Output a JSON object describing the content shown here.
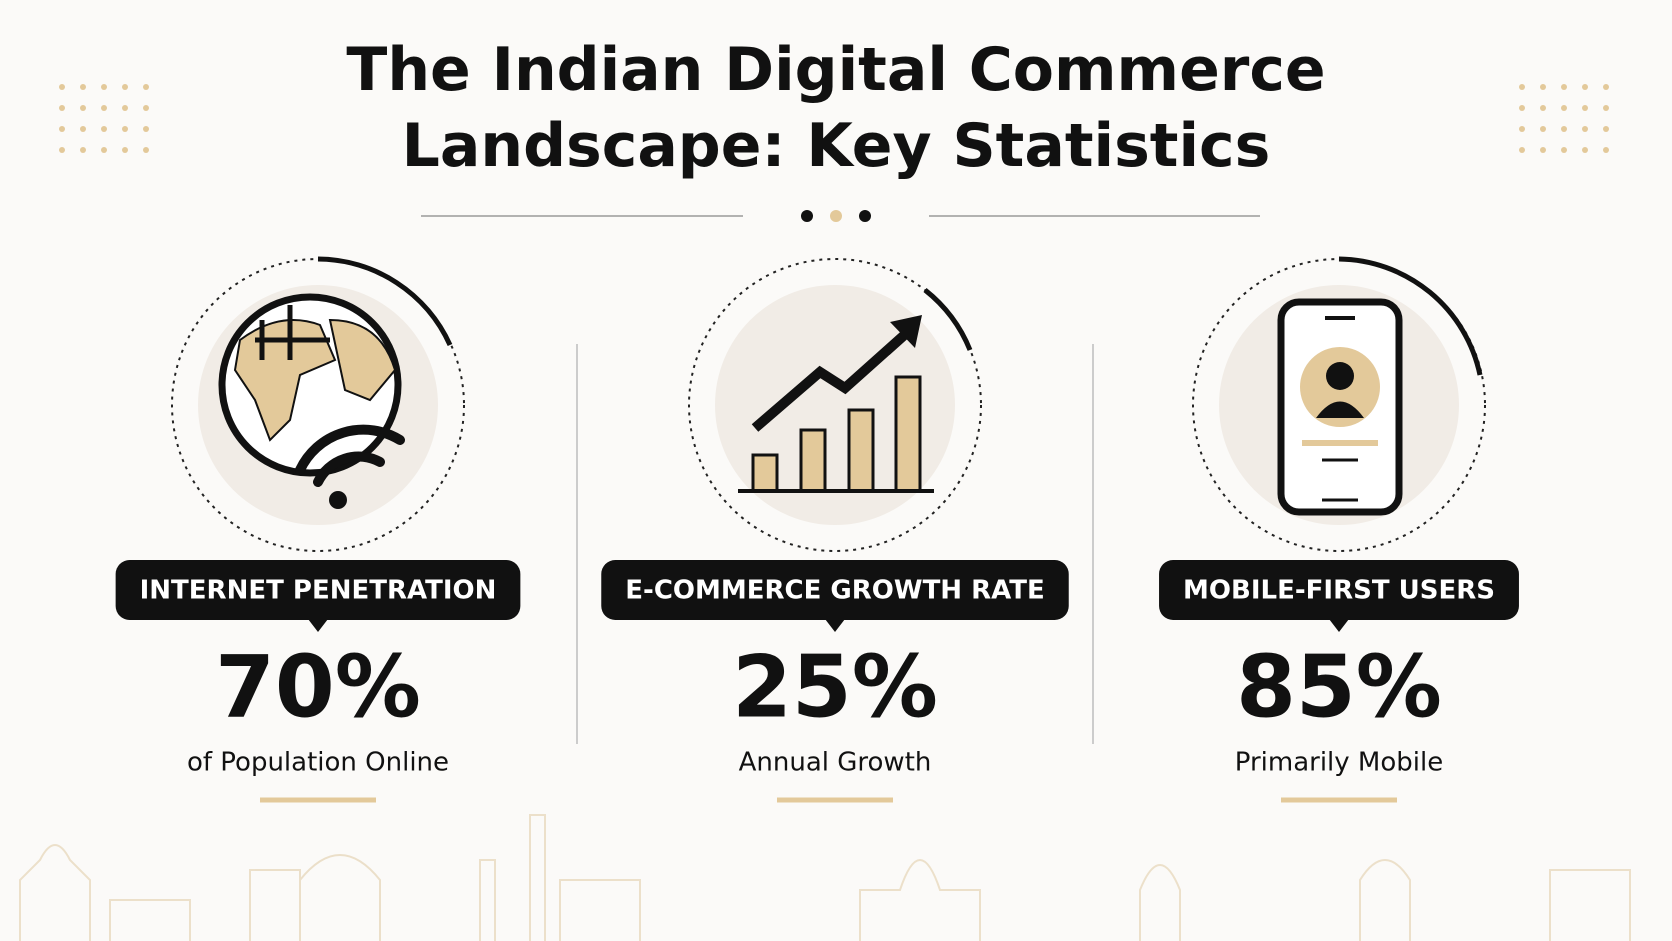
{
  "header": {
    "title": [
      "The Indian Digital Commerce",
      "Landscape: Key Statistics"
    ]
  },
  "stats": [
    {
      "label": "INTERNET PENETRATION",
      "value": "70%",
      "caption": "of Population Online"
    },
    {
      "label": "E-COMMERCE GROWTH RATE",
      "value": "25%",
      "caption": "Annual Growth"
    },
    {
      "label": "MOBILE-FIRST USERS",
      "value": "85%",
      "caption": "Primarily Mobile"
    }
  ]
}
